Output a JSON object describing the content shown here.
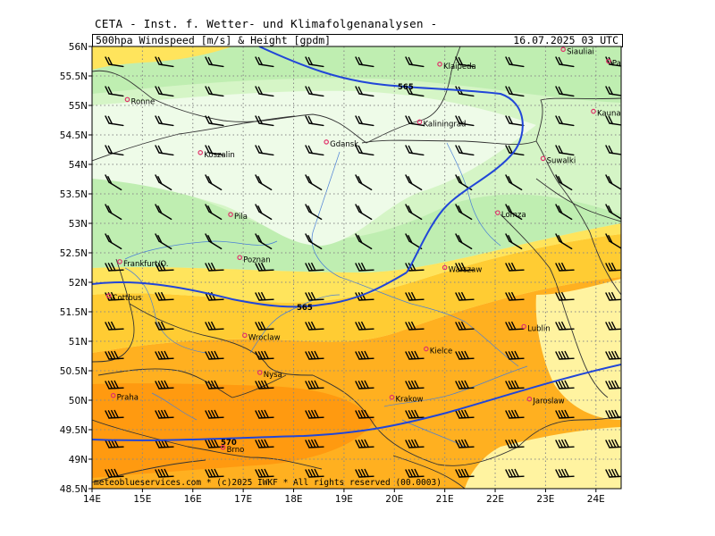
{
  "header": {
    "title": "CETA - Inst. f. Wetter- und Klimafolgenanalysen -",
    "product": "500hpa Windspeed [m/s] & Height [gpdm]",
    "valid_time": "16.07.2025 03 UTC"
  },
  "map": {
    "lon_range": [
      14,
      24.5
    ],
    "lat_range": [
      48.5,
      56
    ],
    "lat_ticks": [
      "48.5N",
      "49N",
      "49.5N",
      "50N",
      "50.5N",
      "51N",
      "51.5N",
      "52N",
      "52.5N",
      "53N",
      "53.5N",
      "54N",
      "54.5N",
      "55N",
      "55.5N",
      "56N"
    ],
    "lon_ticks": [
      "14E",
      "15E",
      "16E",
      "17E",
      "18E",
      "19E",
      "20E",
      "21E",
      "22E",
      "23E",
      "24E"
    ],
    "contours": [
      {
        "label": "565",
        "color": "#2146d8"
      },
      {
        "label": "565",
        "color": "#2146d8"
      },
      {
        "label": "570",
        "color": "#2146d8"
      }
    ],
    "colors": {
      "very_light_green": "#eefbe8",
      "light_green": "#d5f5c6",
      "green": "#bfeeb1",
      "light_yellow": "#fff3a0",
      "yellow": "#ffe45c",
      "gold": "#ffcc33",
      "orange": "#ffb020",
      "dark_orange": "#ff9a10",
      "contour_blue": "#2146d8",
      "city_marker": "#e0306a"
    },
    "cities": [
      {
        "name": "Klaipeda",
        "lon": 20.9,
        "lat": 55.7
      },
      {
        "name": "Siauliai",
        "lon": 23.35,
        "lat": 55.95
      },
      {
        "name": "Panevezys",
        "lon": 24.25,
        "lat": 55.75
      },
      {
        "name": "Kaunas",
        "lon": 23.95,
        "lat": 54.9
      },
      {
        "name": "Ronne",
        "lon": 14.7,
        "lat": 55.1
      },
      {
        "name": "Kaliningrad",
        "lon": 20.5,
        "lat": 54.72
      },
      {
        "name": "Gdansk",
        "lon": 18.65,
        "lat": 54.38
      },
      {
        "name": "Koszalin",
        "lon": 16.15,
        "lat": 54.2
      },
      {
        "name": "Suwalki",
        "lon": 22.95,
        "lat": 54.1
      },
      {
        "name": "Pila",
        "lon": 16.75,
        "lat": 53.15
      },
      {
        "name": "Lomza",
        "lon": 22.05,
        "lat": 53.18
      },
      {
        "name": "Poznan",
        "lon": 16.93,
        "lat": 52.42
      },
      {
        "name": "Frankfurt/O.",
        "lon": 14.55,
        "lat": 52.35
      },
      {
        "name": "Warszaw",
        "lon": 21.0,
        "lat": 52.25
      },
      {
        "name": "Cottbus",
        "lon": 14.33,
        "lat": 51.77
      },
      {
        "name": "Lublin",
        "lon": 22.57,
        "lat": 51.25
      },
      {
        "name": "Wroclaw",
        "lon": 17.03,
        "lat": 51.1
      },
      {
        "name": "Kielce",
        "lon": 20.63,
        "lat": 50.87
      },
      {
        "name": "Nysa",
        "lon": 17.33,
        "lat": 50.47
      },
      {
        "name": "Praha",
        "lon": 14.42,
        "lat": 50.08
      },
      {
        "name": "Krakow",
        "lon": 19.95,
        "lat": 50.05
      },
      {
        "name": "Jaroslaw",
        "lon": 22.68,
        "lat": 50.02
      },
      {
        "name": "Brno",
        "lon": 16.6,
        "lat": 49.2
      }
    ],
    "credit": "meteoblueservices.com * (c)2025 IWKF * All rights reserved (00.0003)"
  }
}
